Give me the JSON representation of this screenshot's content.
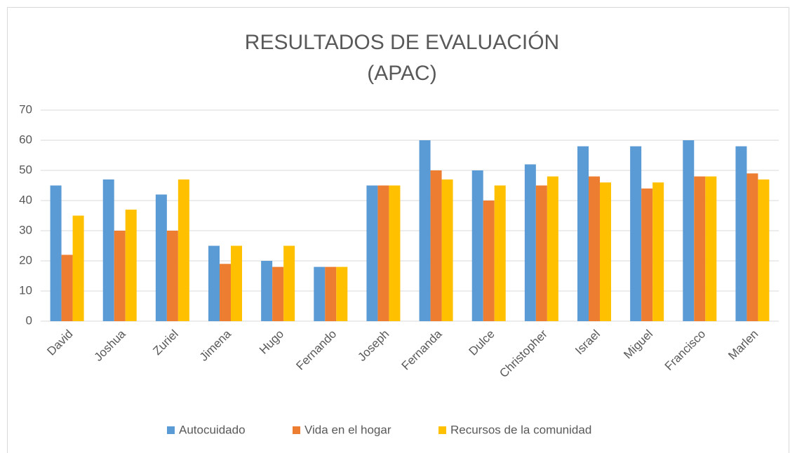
{
  "chart_data": {
    "type": "bar",
    "title": [
      "RESULTADOS DE EVALUACIÓN",
      "(APAC)"
    ],
    "categories": [
      "David",
      "Joshua",
      "Zuriel",
      "Jimena",
      "Hugo",
      "Fernando",
      "Joseph",
      "Fernanda",
      "Dulce",
      "Christopher",
      "Israel",
      "Miguel",
      "Francisco",
      "Marlen"
    ],
    "series": [
      {
        "name": "Autocuidado",
        "color": "#5b9bd5",
        "values": [
          45,
          47,
          42,
          25,
          20,
          18,
          45,
          60,
          50,
          52,
          58,
          58,
          60,
          58
        ]
      },
      {
        "name": "Vida en el hogar",
        "color": "#ed7d31",
        "values": [
          22,
          30,
          30,
          19,
          18,
          18,
          45,
          50,
          40,
          45,
          48,
          44,
          48,
          49
        ]
      },
      {
        "name": "Recursos de la comunidad",
        "color": "#ffc000",
        "values": [
          35,
          37,
          47,
          25,
          25,
          18,
          45,
          47,
          45,
          48,
          46,
          46,
          48,
          47
        ]
      }
    ],
    "ylim": [
      0,
      70
    ],
    "yticks": [
      0,
      10,
      20,
      30,
      40,
      50,
      60,
      70
    ],
    "grid": true,
    "legend": "bottom"
  }
}
